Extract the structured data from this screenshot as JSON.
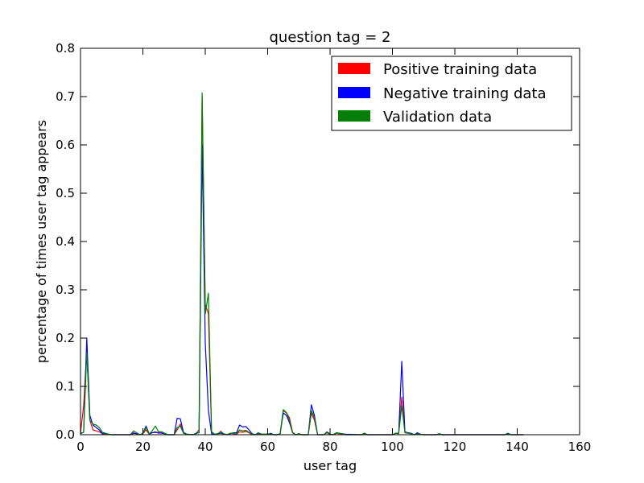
{
  "chart_data": {
    "type": "line",
    "title": "question tag = 2",
    "xlabel": "user tag",
    "ylabel": "percentage of times user tag appears",
    "xlim": [
      0,
      160
    ],
    "ylim": [
      0,
      0.8
    ],
    "x_ticks": [
      "0",
      "20",
      "40",
      "60",
      "80",
      "100",
      "120",
      "140",
      "160"
    ],
    "y_ticks": [
      "0.0",
      "0.1",
      "0.2",
      "0.3",
      "0.4",
      "0.5",
      "0.6",
      "0.7",
      "0.8"
    ],
    "legend": {
      "position": "top-right"
    },
    "series": [
      {
        "name": "Positive training data",
        "color": "#ff0000",
        "points": [
          [
            0,
            0.003
          ],
          [
            1,
            0.06
          ],
          [
            2,
            0.175
          ],
          [
            3,
            0.03
          ],
          [
            4,
            0.01
          ],
          [
            5,
            0.008
          ],
          [
            6,
            0.006
          ],
          [
            7,
            0.002
          ],
          [
            8,
            0.001
          ],
          [
            10,
            0.0
          ],
          [
            14,
            0.0
          ],
          [
            16,
            0.0
          ],
          [
            17,
            0.004
          ],
          [
            18,
            0.002
          ],
          [
            19,
            0.0
          ],
          [
            20,
            0.002
          ],
          [
            21,
            0.01
          ],
          [
            22,
            0.001
          ],
          [
            23,
            0.004
          ],
          [
            24,
            0.006
          ],
          [
            25,
            0.003
          ],
          [
            26,
            0.004
          ],
          [
            27,
            0.002
          ],
          [
            28,
            0.0
          ],
          [
            30,
            0.0
          ],
          [
            31,
            0.01
          ],
          [
            32,
            0.022
          ],
          [
            33,
            0.004
          ],
          [
            34,
            0.001
          ],
          [
            36,
            0.0
          ],
          [
            37,
            0.002
          ],
          [
            38,
            0.01
          ],
          [
            39,
            0.7
          ],
          [
            40,
            0.27
          ],
          [
            41,
            0.25
          ],
          [
            42,
            0.006
          ],
          [
            43,
            0.001
          ],
          [
            44,
            0.002
          ],
          [
            45,
            0.007
          ],
          [
            46,
            0.001
          ],
          [
            47,
            0.0
          ],
          [
            48,
            0.003
          ],
          [
            49,
            0.002
          ],
          [
            50,
            0.001
          ],
          [
            51,
            0.006
          ],
          [
            52,
            0.005
          ],
          [
            53,
            0.007
          ],
          [
            54,
            0.004
          ],
          [
            55,
            0.0
          ],
          [
            56,
            0.0
          ],
          [
            57,
            0.002
          ],
          [
            58,
            0.0
          ],
          [
            60,
            0.001
          ],
          [
            61,
            0.002
          ],
          [
            62,
            0.0
          ],
          [
            63,
            0.0
          ],
          [
            64,
            0.002
          ],
          [
            65,
            0.05
          ],
          [
            66,
            0.045
          ],
          [
            67,
            0.035
          ],
          [
            68,
            0.005
          ],
          [
            69,
            0.0
          ],
          [
            70,
            0.002
          ],
          [
            71,
            0.0
          ],
          [
            73,
            0.0
          ],
          [
            74,
            0.045
          ],
          [
            75,
            0.03
          ],
          [
            76,
            0.0
          ],
          [
            78,
            0.0
          ],
          [
            79,
            0.004
          ],
          [
            80,
            0.0
          ],
          [
            81,
            0.0
          ],
          [
            82,
            0.003
          ],
          [
            83,
            0.002
          ],
          [
            84,
            0.001
          ],
          [
            85,
            0.0
          ],
          [
            90,
            0.0
          ],
          [
            91,
            0.002
          ],
          [
            92,
            0.0
          ],
          [
            100,
            0.0
          ],
          [
            101,
            0.003
          ],
          [
            102,
            0.002
          ],
          [
            103,
            0.078
          ],
          [
            104,
            0.004
          ],
          [
            105,
            0.003
          ],
          [
            106,
            0.002
          ],
          [
            107,
            0.0
          ],
          [
            108,
            0.001
          ],
          [
            110,
            0.0
          ],
          [
            114,
            0.0
          ],
          [
            115,
            0.002
          ],
          [
            116,
            0.0
          ],
          [
            120,
            0.0
          ],
          [
            130,
            0.0
          ],
          [
            136,
            0.0
          ],
          [
            137,
            0.002
          ],
          [
            138,
            0.0
          ],
          [
            142,
            0.0
          ]
        ]
      },
      {
        "name": "Negative training data",
        "color": "#0000ff",
        "points": [
          [
            0,
            0.003
          ],
          [
            1,
            0.005
          ],
          [
            2,
            0.2
          ],
          [
            3,
            0.04
          ],
          [
            4,
            0.02
          ],
          [
            5,
            0.015
          ],
          [
            6,
            0.01
          ],
          [
            7,
            0.002
          ],
          [
            8,
            0.003
          ],
          [
            9,
            0.001
          ],
          [
            10,
            0.0
          ],
          [
            14,
            0.0
          ],
          [
            16,
            0.0
          ],
          [
            17,
            0.003
          ],
          [
            18,
            0.002
          ],
          [
            19,
            0.0
          ],
          [
            20,
            0.003
          ],
          [
            21,
            0.018
          ],
          [
            22,
            0.002
          ],
          [
            23,
            0.004
          ],
          [
            24,
            0.005
          ],
          [
            25,
            0.004
          ],
          [
            26,
            0.003
          ],
          [
            27,
            0.002
          ],
          [
            28,
            0.0
          ],
          [
            30,
            0.0
          ],
          [
            31,
            0.034
          ],
          [
            32,
            0.033
          ],
          [
            33,
            0.005
          ],
          [
            34,
            0.001
          ],
          [
            36,
            0.0
          ],
          [
            37,
            0.003
          ],
          [
            38,
            0.004
          ],
          [
            39,
            0.6
          ],
          [
            40,
            0.19
          ],
          [
            41,
            0.05
          ],
          [
            42,
            0.002
          ],
          [
            43,
            0.001
          ],
          [
            44,
            0.002
          ],
          [
            45,
            0.003
          ],
          [
            46,
            0.001
          ],
          [
            47,
            0.0
          ],
          [
            48,
            0.002
          ],
          [
            49,
            0.004
          ],
          [
            50,
            0.004
          ],
          [
            51,
            0.02
          ],
          [
            52,
            0.016
          ],
          [
            53,
            0.017
          ],
          [
            54,
            0.01
          ],
          [
            55,
            0.002
          ],
          [
            56,
            0.0
          ],
          [
            57,
            0.004
          ],
          [
            58,
            0.001
          ],
          [
            60,
            0.001
          ],
          [
            61,
            0.003
          ],
          [
            62,
            0.0
          ],
          [
            63,
            0.0
          ],
          [
            64,
            0.002
          ],
          [
            65,
            0.045
          ],
          [
            66,
            0.04
          ],
          [
            67,
            0.025
          ],
          [
            68,
            0.004
          ],
          [
            69,
            0.0
          ],
          [
            70,
            0.002
          ],
          [
            71,
            0.0
          ],
          [
            73,
            0.0
          ],
          [
            74,
            0.062
          ],
          [
            75,
            0.04
          ],
          [
            76,
            0.0
          ],
          [
            78,
            0.0
          ],
          [
            79,
            0.006
          ],
          [
            80,
            0.001
          ],
          [
            81,
            0.0
          ],
          [
            82,
            0.004
          ],
          [
            83,
            0.003
          ],
          [
            84,
            0.002
          ],
          [
            85,
            0.001
          ],
          [
            90,
            0.0
          ],
          [
            91,
            0.003
          ],
          [
            92,
            0.0
          ],
          [
            100,
            0.0
          ],
          [
            101,
            0.003
          ],
          [
            102,
            0.003
          ],
          [
            103,
            0.152
          ],
          [
            104,
            0.006
          ],
          [
            105,
            0.004
          ],
          [
            106,
            0.003
          ],
          [
            107,
            0.0
          ],
          [
            108,
            0.004
          ],
          [
            109,
            0.001
          ],
          [
            110,
            0.0
          ],
          [
            114,
            0.0
          ],
          [
            115,
            0.002
          ],
          [
            116,
            0.0
          ],
          [
            120,
            0.0
          ],
          [
            130,
            0.0
          ],
          [
            136,
            0.0
          ],
          [
            137,
            0.003
          ],
          [
            138,
            0.0
          ],
          [
            142,
            0.0
          ]
        ]
      },
      {
        "name": "Validation data",
        "color": "#008000",
        "points": [
          [
            0,
            0.002
          ],
          [
            1,
            0.005
          ],
          [
            2,
            0.17
          ],
          [
            3,
            0.03
          ],
          [
            4,
            0.022
          ],
          [
            5,
            0.02
          ],
          [
            6,
            0.015
          ],
          [
            7,
            0.005
          ],
          [
            8,
            0.003
          ],
          [
            9,
            0.001
          ],
          [
            10,
            0.0
          ],
          [
            14,
            0.0
          ],
          [
            16,
            0.0
          ],
          [
            17,
            0.008
          ],
          [
            18,
            0.004
          ],
          [
            19,
            0.0
          ],
          [
            20,
            0.002
          ],
          [
            21,
            0.015
          ],
          [
            22,
            0.001
          ],
          [
            23,
            0.008
          ],
          [
            24,
            0.018
          ],
          [
            25,
            0.006
          ],
          [
            26,
            0.006
          ],
          [
            27,
            0.003
          ],
          [
            28,
            0.0
          ],
          [
            30,
            0.0
          ],
          [
            31,
            0.015
          ],
          [
            32,
            0.018
          ],
          [
            33,
            0.003
          ],
          [
            34,
            0.001
          ],
          [
            36,
            0.0
          ],
          [
            37,
            0.002
          ],
          [
            38,
            0.005
          ],
          [
            39,
            0.708
          ],
          [
            40,
            0.25
          ],
          [
            41,
            0.293
          ],
          [
            42,
            0.006
          ],
          [
            43,
            0.001
          ],
          [
            44,
            0.002
          ],
          [
            45,
            0.005
          ],
          [
            46,
            0.002
          ],
          [
            47,
            0.0
          ],
          [
            48,
            0.003
          ],
          [
            49,
            0.003
          ],
          [
            50,
            0.002
          ],
          [
            51,
            0.01
          ],
          [
            52,
            0.008
          ],
          [
            53,
            0.009
          ],
          [
            54,
            0.005
          ],
          [
            55,
            0.001
          ],
          [
            56,
            0.0
          ],
          [
            57,
            0.003
          ],
          [
            58,
            0.001
          ],
          [
            60,
            0.001
          ],
          [
            61,
            0.002
          ],
          [
            62,
            0.0
          ],
          [
            63,
            0.0
          ],
          [
            64,
            0.002
          ],
          [
            65,
            0.052
          ],
          [
            66,
            0.046
          ],
          [
            67,
            0.03
          ],
          [
            68,
            0.004
          ],
          [
            69,
            0.0
          ],
          [
            70,
            0.002
          ],
          [
            71,
            0.0
          ],
          [
            73,
            0.0
          ],
          [
            74,
            0.05
          ],
          [
            75,
            0.035
          ],
          [
            76,
            0.0
          ],
          [
            78,
            0.0
          ],
          [
            79,
            0.005
          ],
          [
            80,
            0.001
          ],
          [
            81,
            0.0
          ],
          [
            82,
            0.004
          ],
          [
            83,
            0.003
          ],
          [
            84,
            0.002
          ],
          [
            85,
            0.0
          ],
          [
            90,
            0.0
          ],
          [
            91,
            0.003
          ],
          [
            92,
            0.0
          ],
          [
            100,
            0.0
          ],
          [
            101,
            0.003
          ],
          [
            102,
            0.003
          ],
          [
            103,
            0.06
          ],
          [
            104,
            0.005
          ],
          [
            105,
            0.003
          ],
          [
            106,
            0.002
          ],
          [
            107,
            0.0
          ],
          [
            108,
            0.002
          ],
          [
            110,
            0.0
          ],
          [
            114,
            0.0
          ],
          [
            115,
            0.002
          ],
          [
            116,
            0.0
          ],
          [
            120,
            0.0
          ],
          [
            130,
            0.0
          ],
          [
            136,
            0.0
          ],
          [
            137,
            0.002
          ],
          [
            138,
            0.0
          ],
          [
            142,
            0.0
          ]
        ]
      }
    ]
  }
}
